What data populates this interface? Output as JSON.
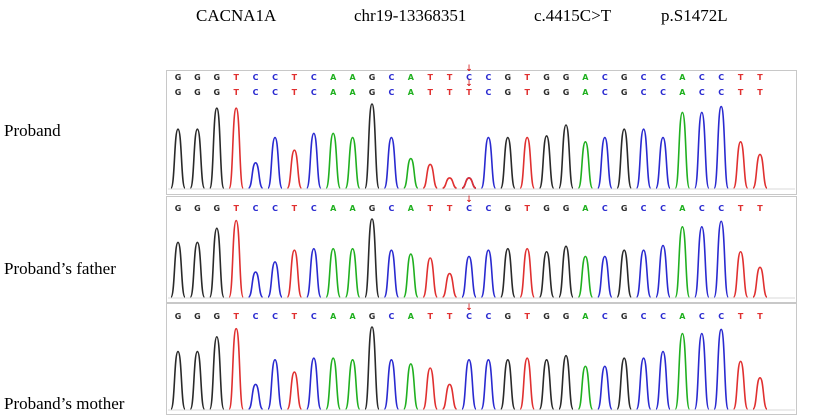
{
  "header": {
    "gene": "CACNA1A",
    "position": "chr19-13368351",
    "cdna": "c.4415C>T",
    "protein": "p.S1472L"
  },
  "colors": {
    "A": "#20b020",
    "C": "#2a2ad0",
    "G": "#2a2a2a",
    "T": "#e03030"
  },
  "sequence": [
    "G",
    "G",
    "G",
    "T",
    "C",
    "C",
    "T",
    "C",
    "A",
    "A",
    "G",
    "C",
    "A",
    "T",
    "T",
    "C",
    "C",
    "G",
    "T",
    "G",
    "G",
    "A",
    "C",
    "G",
    "C",
    "C",
    "A",
    "C",
    "C",
    "T",
    "T"
  ],
  "variant_index": 15,
  "marker_icon": "red-arrow-down",
  "samples": [
    {
      "label": "Proband",
      "double_sequence_row": true,
      "peaks": [
        0.7,
        0.7,
        0.95,
        0.95,
        0.3,
        0.6,
        0.45,
        0.65,
        0.65,
        0.6,
        1.0,
        0.6,
        0.35,
        0.28,
        0.12,
        0.12,
        0.6,
        0.6,
        0.6,
        0.62,
        0.75,
        0.55,
        0.6,
        0.7,
        0.7,
        0.6,
        0.9,
        0.9,
        0.97,
        0.55,
        0.4
      ],
      "secondary": {
        "index": 15,
        "base": "T",
        "height": 0.12
      }
    },
    {
      "label": "Proband’s father",
      "double_sequence_row": false,
      "peaks": [
        0.7,
        0.7,
        0.88,
        0.98,
        0.32,
        0.45,
        0.6,
        0.62,
        0.62,
        0.62,
        1.0,
        0.6,
        0.55,
        0.5,
        0.3,
        0.52,
        0.6,
        0.62,
        0.62,
        0.58,
        0.65,
        0.52,
        0.52,
        0.6,
        0.6,
        0.66,
        0.9,
        0.9,
        0.97,
        0.58,
        0.38
      ],
      "secondary": null
    },
    {
      "label": "Proband’s mother",
      "double_sequence_row": false,
      "peaks": [
        0.7,
        0.7,
        0.88,
        0.98,
        0.3,
        0.6,
        0.45,
        0.62,
        0.62,
        0.6,
        1.0,
        0.6,
        0.55,
        0.5,
        0.3,
        0.6,
        0.6,
        0.6,
        0.62,
        0.6,
        0.65,
        0.52,
        0.52,
        0.62,
        0.62,
        0.7,
        0.92,
        0.92,
        0.97,
        0.58,
        0.38
      ],
      "secondary": null
    }
  ]
}
